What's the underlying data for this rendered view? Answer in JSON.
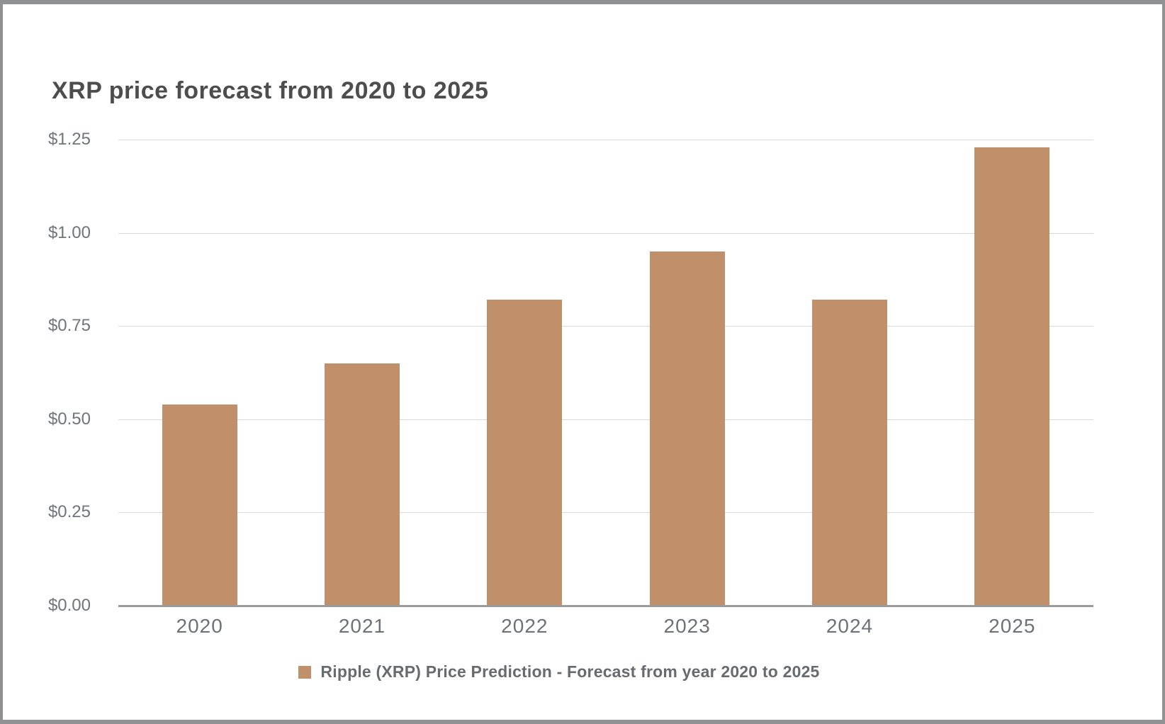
{
  "title": "XRP price forecast from 2020 to 2025",
  "chart_data": {
    "type": "bar",
    "title": "XRP price forecast from 2020 to 2025",
    "categories": [
      "2020",
      "2021",
      "2022",
      "2023",
      "2024",
      "2025"
    ],
    "values": [
      0.54,
      0.65,
      0.82,
      0.95,
      0.82,
      1.23
    ],
    "series": [
      {
        "name": "Ripple (XRP) Price Prediction - Forecast from year 2020 to 2025",
        "values": [
          0.54,
          0.65,
          0.82,
          0.95,
          0.82,
          1.23
        ]
      }
    ],
    "xlabel": "",
    "ylabel": "",
    "ylim": [
      0,
      1.25
    ],
    "ytick_interval": 0.25,
    "ytick_labels": [
      "$0.00",
      "$0.25",
      "$0.50",
      "$0.75",
      "$1.00",
      "$1.25"
    ],
    "grid": true,
    "legend_position": "bottom",
    "bar_color": "#c0906b"
  },
  "legend": {
    "label": "Ripple (XRP) Price Prediction - Forecast from year 2020 to 2025"
  },
  "colors": {
    "bar": "#c0906b",
    "title_text": "#4d4d4d",
    "axis_label_text": "#70757b",
    "legend_text": "#666b70",
    "gridline": "#d9d9d9",
    "axis_line": "#9b9b9b",
    "frame_border": "#8f9193",
    "background": "#ffffff"
  }
}
